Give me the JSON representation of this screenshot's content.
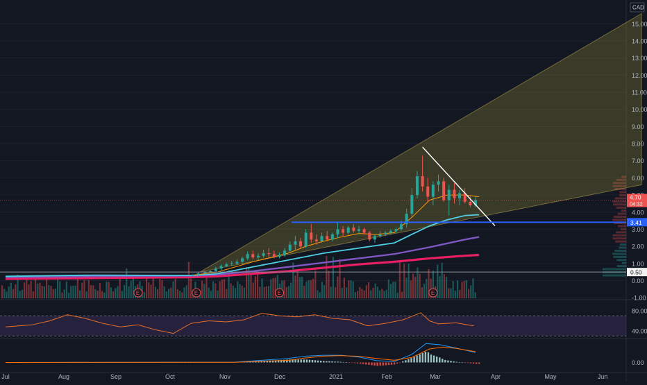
{
  "chart_data": {
    "type": "line",
    "currency": "CAD",
    "x_labels": [
      "Jul",
      "Aug",
      "Sep",
      "Oct",
      "Nov",
      "Dec",
      "2021",
      "Feb",
      "Mar",
      "Apr",
      "May",
      "Jun"
    ],
    "price_axis": {
      "ylim": [
        -1.0,
        15.5
      ],
      "ticks": [
        "-1.00",
        "0.00",
        "1.00",
        "2.00",
        "3.00",
        "4.00",
        "5.00",
        "6.00",
        "7.00",
        "8.00",
        "9.00",
        "10.00",
        "11.00",
        "12.00",
        "13.00",
        "14.00",
        "15.00"
      ],
      "tick_values": [
        -1,
        0,
        1,
        2,
        3,
        4,
        5,
        6,
        7,
        8,
        9,
        10,
        11,
        12,
        13,
        14,
        15
      ]
    },
    "current_price": {
      "label": "4.70",
      "value": 4.7,
      "countdown": "04:32"
    },
    "markers": [
      {
        "label": "3.41",
        "value": 3.41
      },
      {
        "label": "0.50",
        "value": 0.5
      }
    ],
    "event_labels": [
      "E",
      "E",
      "E",
      "E"
    ],
    "event_x": [
      7.5,
      10.8,
      15.5,
      24.2
    ],
    "candles": [
      [
        10.6,
        0.3,
        0.38,
        0.26,
        0.35
      ],
      [
        10.9,
        0.35,
        0.5,
        0.3,
        0.42
      ],
      [
        11.3,
        0.42,
        0.55,
        0.38,
        0.48
      ],
      [
        11.6,
        0.48,
        0.6,
        0.44,
        0.55
      ],
      [
        11.9,
        0.55,
        0.8,
        0.5,
        0.7
      ],
      [
        12.2,
        0.7,
        0.95,
        0.62,
        0.85
      ],
      [
        12.5,
        0.85,
        1.05,
        0.78,
        0.95
      ],
      [
        12.8,
        0.95,
        1.15,
        0.85,
        1.0
      ],
      [
        13.1,
        1.0,
        1.25,
        0.92,
        1.1
      ],
      [
        13.4,
        1.1,
        1.4,
        1.0,
        1.3
      ],
      [
        13.7,
        1.3,
        1.7,
        1.2,
        1.55
      ],
      [
        14.0,
        1.55,
        1.75,
        1.25,
        1.35
      ],
      [
        14.3,
        1.35,
        1.6,
        1.2,
        1.45
      ],
      [
        14.6,
        1.45,
        1.8,
        1.35,
        1.6
      ],
      [
        14.9,
        1.6,
        1.9,
        1.4,
        1.55
      ],
      [
        15.2,
        1.55,
        1.75,
        1.3,
        1.4
      ],
      [
        15.5,
        1.4,
        1.65,
        1.3,
        1.5
      ],
      [
        15.8,
        1.5,
        1.9,
        1.4,
        1.75
      ],
      [
        16.1,
        1.75,
        2.3,
        1.6,
        2.1
      ],
      [
        16.4,
        2.1,
        2.6,
        1.8,
        2.3
      ],
      [
        16.7,
        2.3,
        2.5,
        1.9,
        2.0
      ],
      [
        17.0,
        2.0,
        3.0,
        1.9,
        2.8
      ],
      [
        17.3,
        2.8,
        3.3,
        2.2,
        2.4
      ],
      [
        17.6,
        2.4,
        2.7,
        2.1,
        2.3
      ],
      [
        17.9,
        2.3,
        2.8,
        2.2,
        2.6
      ],
      [
        18.2,
        2.6,
        2.9,
        2.3,
        2.4
      ],
      [
        18.5,
        2.4,
        2.8,
        2.3,
        2.7
      ],
      [
        18.8,
        2.7,
        3.4,
        2.5,
        3.0
      ],
      [
        19.1,
        3.0,
        3.2,
        2.6,
        2.8
      ],
      [
        19.4,
        2.8,
        3.2,
        2.7,
        3.1
      ],
      [
        19.7,
        3.1,
        3.3,
        2.8,
        2.9
      ],
      [
        20.0,
        2.9,
        3.2,
        2.7,
        3.0
      ],
      [
        20.3,
        3.0,
        3.1,
        2.7,
        2.8
      ],
      [
        20.6,
        2.8,
        2.9,
        2.3,
        2.4
      ],
      [
        20.9,
        2.4,
        2.7,
        2.2,
        2.6
      ],
      [
        21.2,
        2.6,
        2.9,
        2.5,
        2.7
      ],
      [
        21.5,
        2.7,
        2.9,
        2.6,
        2.8
      ],
      [
        21.8,
        2.8,
        3.0,
        2.7,
        2.9
      ],
      [
        22.1,
        2.9,
        3.1,
        2.8,
        3.0
      ],
      [
        22.4,
        3.0,
        3.5,
        2.9,
        3.3
      ],
      [
        22.7,
        3.3,
        4.2,
        3.1,
        3.9
      ],
      [
        23.0,
        3.9,
        5.4,
        3.7,
        5.0
      ],
      [
        23.3,
        5.0,
        6.4,
        4.8,
        6.1
      ],
      [
        23.6,
        6.1,
        7.3,
        5.2,
        5.5
      ],
      [
        23.9,
        5.5,
        6.0,
        4.6,
        4.9
      ],
      [
        24.2,
        4.9,
        5.8,
        4.4,
        5.6
      ],
      [
        24.5,
        5.6,
        6.2,
        5.2,
        5.8
      ],
      [
        24.8,
        5.8,
        6.0,
        4.6,
        4.7
      ],
      [
        25.1,
        4.7,
        5.6,
        3.8,
        5.3
      ],
      [
        25.4,
        5.3,
        5.7,
        4.5,
        4.8
      ],
      [
        25.7,
        4.8,
        5.3,
        4.4,
        5.1
      ],
      [
        26.0,
        5.1,
        5.4,
        4.5,
        4.6
      ],
      [
        26.3,
        4.6,
        4.9,
        4.3,
        4.4
      ],
      [
        26.6,
        4.4,
        4.9,
        4.3,
        4.7
      ]
    ],
    "ma20": [
      [
        10.6,
        0.32
      ],
      [
        12,
        0.5
      ],
      [
        13,
        0.8
      ],
      [
        14,
        1.1
      ],
      [
        15,
        1.35
      ],
      [
        16,
        1.6
      ],
      [
        17,
        2.0
      ],
      [
        18,
        2.3
      ],
      [
        19,
        2.55
      ],
      [
        20,
        2.75
      ],
      [
        21,
        2.7
      ],
      [
        22,
        2.8
      ],
      [
        23,
        3.7
      ],
      [
        24,
        4.7
      ],
      [
        25,
        5.0
      ],
      [
        26,
        5.0
      ],
      [
        26.8,
        4.9
      ]
    ],
    "ma50": [
      [
        0,
        0.25
      ],
      [
        5,
        0.32
      ],
      [
        10.5,
        0.3
      ],
      [
        12,
        0.4
      ],
      [
        14,
        0.8
      ],
      [
        16,
        1.2
      ],
      [
        18,
        1.6
      ],
      [
        20,
        1.9
      ],
      [
        22,
        2.2
      ],
      [
        23,
        2.7
      ],
      [
        24,
        3.2
      ],
      [
        25,
        3.55
      ],
      [
        26,
        3.8
      ],
      [
        26.8,
        3.85
      ]
    ],
    "ma100": [
      [
        0,
        0.2
      ],
      [
        5,
        0.25
      ],
      [
        10.5,
        0.28
      ],
      [
        12,
        0.35
      ],
      [
        14,
        0.55
      ],
      [
        16,
        0.8
      ],
      [
        18,
        1.05
      ],
      [
        20,
        1.3
      ],
      [
        22,
        1.55
      ],
      [
        24,
        1.95
      ],
      [
        26,
        2.4
      ],
      [
        26.8,
        2.55
      ]
    ],
    "ma200": [
      [
        0,
        0.1
      ],
      [
        5,
        0.15
      ],
      [
        10.5,
        0.2
      ],
      [
        12,
        0.25
      ],
      [
        14,
        0.4
      ],
      [
        16,
        0.55
      ],
      [
        18,
        0.75
      ],
      [
        20,
        0.95
      ],
      [
        22,
        1.1
      ],
      [
        24,
        1.3
      ],
      [
        26,
        1.45
      ],
      [
        26.8,
        1.5
      ]
    ],
    "wedge_upper": [
      [
        11,
        0.5
      ],
      [
        36,
        15.6
      ]
    ],
    "wedge_lower": [
      [
        11,
        0.5
      ],
      [
        36,
        5.6
      ]
    ],
    "trendline": [
      [
        23.6,
        7.8
      ],
      [
        27.7,
        3.2
      ]
    ],
    "rsi": {
      "ticks": [
        "80.00",
        "40.00"
      ],
      "tick_values": [
        80,
        40
      ],
      "upper_band": 70,
      "lower_band": 30,
      "values": [
        [
          0,
          48
        ],
        [
          1.5,
          52
        ],
        [
          2.5,
          60
        ],
        [
          3.5,
          72
        ],
        [
          4.5,
          65
        ],
        [
          5.5,
          55
        ],
        [
          6.5,
          48
        ],
        [
          7.5,
          52
        ],
        [
          8.5,
          42
        ],
        [
          9.5,
          35
        ],
        [
          10.5,
          55
        ],
        [
          11.5,
          60
        ],
        [
          12.5,
          58
        ],
        [
          13.5,
          62
        ],
        [
          14.5,
          75
        ],
        [
          15.5,
          70
        ],
        [
          16.5,
          68
        ],
        [
          17.5,
          72
        ],
        [
          18.5,
          65
        ],
        [
          19.5,
          62
        ],
        [
          20.5,
          50
        ],
        [
          21.5,
          55
        ],
        [
          22.5,
          62
        ],
        [
          23.5,
          76
        ],
        [
          24.0,
          60
        ],
        [
          24.5,
          54
        ],
        [
          25.5,
          56
        ],
        [
          26.5,
          50
        ]
      ]
    },
    "macd": {
      "ticks": [
        "0.00"
      ],
      "tick_values": [
        0
      ],
      "macd": [
        [
          0,
          0
        ],
        [
          13,
          0.02
        ],
        [
          16,
          0.22
        ],
        [
          17,
          0.35
        ],
        [
          18,
          0.4
        ],
        [
          19,
          0.4
        ],
        [
          20,
          0.3
        ],
        [
          21,
          0.1
        ],
        [
          22,
          0.05
        ],
        [
          23,
          0.45
        ],
        [
          23.8,
          1.05
        ],
        [
          24.6,
          0.98
        ],
        [
          25.5,
          0.8
        ],
        [
          26.6,
          0.55
        ]
      ],
      "signal": [
        [
          0,
          0
        ],
        [
          13,
          0.01
        ],
        [
          16,
          0.12
        ],
        [
          17,
          0.25
        ],
        [
          18,
          0.35
        ],
        [
          19,
          0.38
        ],
        [
          20,
          0.34
        ],
        [
          21,
          0.22
        ],
        [
          22,
          0.12
        ],
        [
          23,
          0.28
        ],
        [
          24,
          0.75
        ],
        [
          24.8,
          0.85
        ],
        [
          25.5,
          0.78
        ],
        [
          26.6,
          0.6
        ]
      ]
    }
  }
}
